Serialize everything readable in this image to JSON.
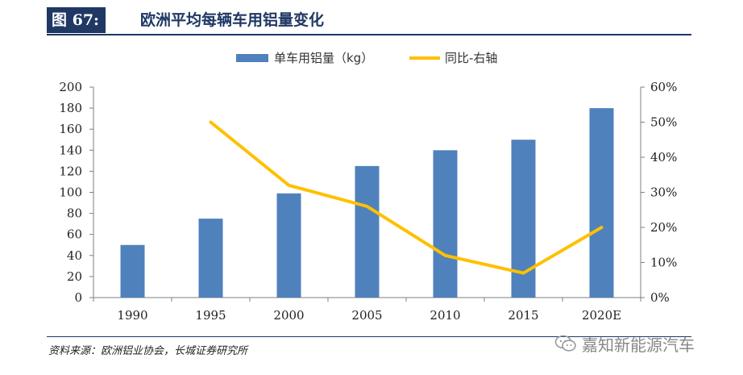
{
  "header": {
    "figure_label": "图 67:",
    "title": "欧洲平均每辆车用铝量变化"
  },
  "chart_data": {
    "type": "bar",
    "categories": [
      "1990",
      "1995",
      "2000",
      "2005",
      "2010",
      "2015",
      "2020E"
    ],
    "series": [
      {
        "name": "单车用铝量（kg）",
        "type": "bar",
        "axis": "left",
        "values": [
          50,
          75,
          99,
          125,
          140,
          150,
          180
        ]
      },
      {
        "name": "同比-右轴",
        "type": "line",
        "axis": "right",
        "values": [
          null,
          0.5,
          0.32,
          0.26,
          0.12,
          0.07,
          0.2
        ]
      }
    ],
    "y_left": {
      "range": [
        0,
        200
      ],
      "ticks": [
        "0",
        "20",
        "40",
        "60",
        "80",
        "100",
        "120",
        "140",
        "160",
        "180",
        "200"
      ]
    },
    "y_right": {
      "range": [
        0,
        0.6
      ],
      "ticks": [
        "0%",
        "10%",
        "20%",
        "30%",
        "40%",
        "50%",
        "60%"
      ]
    },
    "colors": {
      "bar": "#4f81bd",
      "line": "#ffc000"
    },
    "legend_position": "top",
    "grid": false
  },
  "footer": {
    "source": "资料来源：欧洲铝业协会，长城证券研究所",
    "watermark": "嘉知新能源汽车",
    "watermark_icon": "wechat-icon"
  }
}
